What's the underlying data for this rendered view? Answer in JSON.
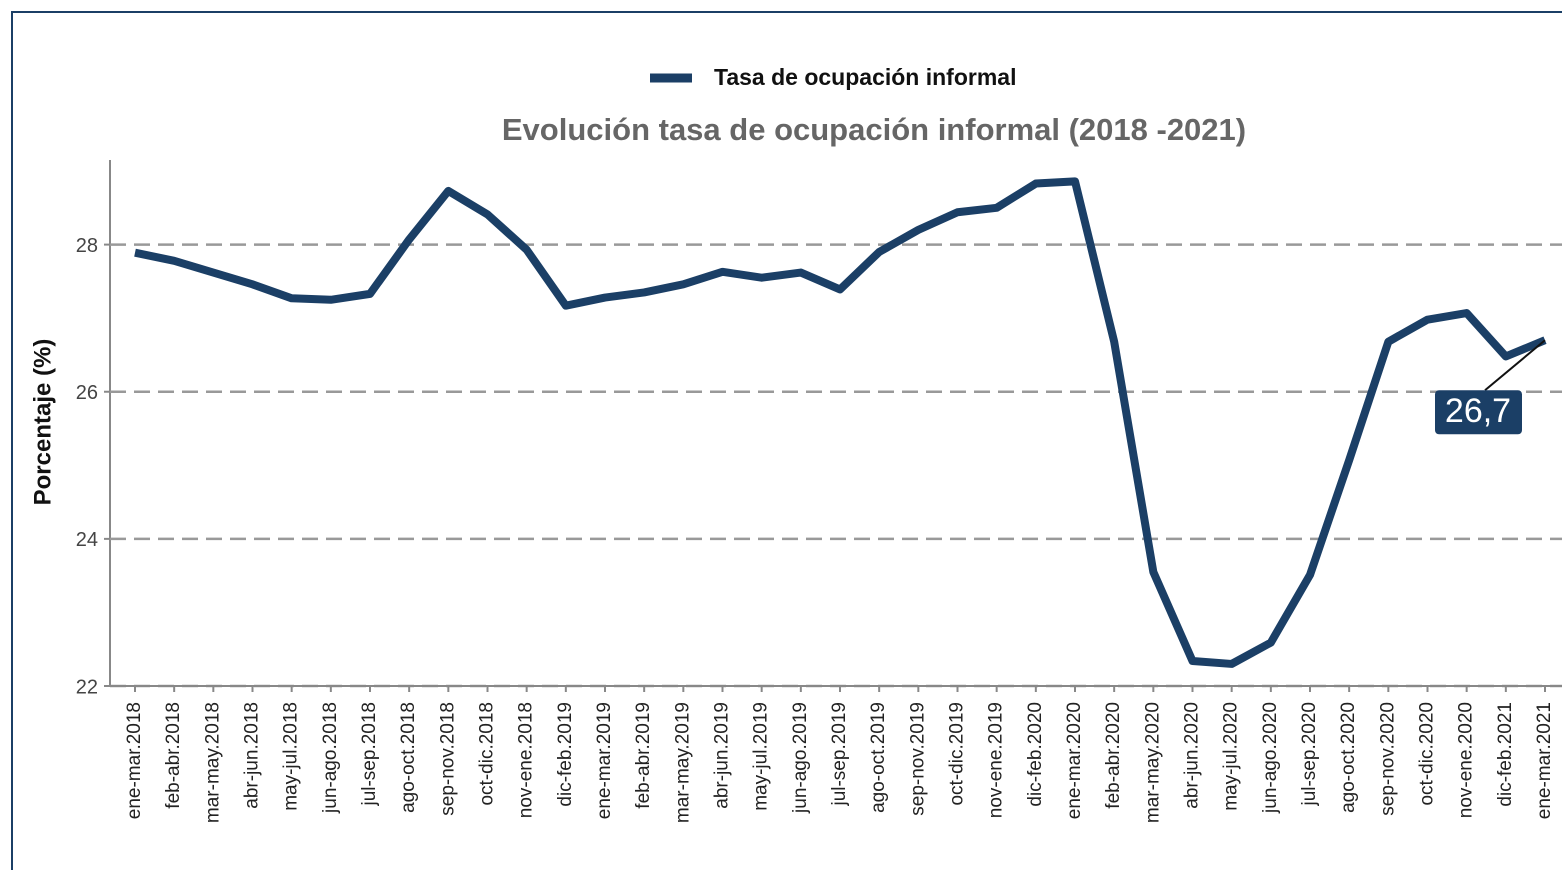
{
  "chart_data": {
    "type": "line",
    "title": "Evolución tasa de ocupación informal (2018 -2021)",
    "y_label": "Porcentaje (%)",
    "categories": [
      "ene-mar.2018",
      "feb-abr.2018",
      "mar-may.2018",
      "abr-jun.2018",
      "may-jul.2018",
      "jun-ago.2018",
      "jul-sep.2018",
      "ago-oct.2018",
      "sep-nov.2018",
      "oct-dic.2018",
      "nov-ene.2018",
      "dic-feb.2019",
      "ene-mar.2019",
      "feb-abr.2019",
      "mar-may.2019",
      "abr-jun.2019",
      "may-jul.2019",
      "jun-ago.2019",
      "jul-sep.2019",
      "ago-oct.2019",
      "sep-nov.2019",
      "oct-dic.2019",
      "nov-ene.2019",
      "dic-feb.2020",
      "ene-mar.2020",
      "feb-abr.2020",
      "mar-may.2020",
      "abr-jun.2020",
      "may-jul.2020",
      "jun-ago.2020",
      "jul-sep.2020",
      "ago-oct.2020",
      "sep-nov.2020",
      "oct-dic.2020",
      "nov-ene.2020",
      "dic-feb.2021",
      "ene-mar.2021"
    ],
    "series": [
      {
        "name": "Tasa de ocupación informal",
        "color": "#1b3f66",
        "values": [
          27.89,
          27.78,
          27.62,
          27.46,
          27.27,
          27.25,
          27.33,
          28.07,
          28.73,
          28.41,
          27.93,
          27.17,
          27.28,
          27.35,
          27.46,
          27.63,
          27.55,
          27.62,
          27.39,
          27.9,
          28.2,
          28.44,
          28.5,
          28.83,
          28.86,
          26.68,
          23.55,
          22.34,
          22.3,
          22.59,
          23.51,
          25.07,
          26.68,
          26.98,
          27.07,
          26.48,
          26.7
        ],
        "value_labels": [
          null,
          null,
          null,
          null,
          null,
          null,
          null,
          null,
          null,
          null,
          null,
          null,
          null,
          null,
          null,
          null,
          null,
          null,
          null,
          null,
          null,
          null,
          null,
          null,
          null,
          null,
          null,
          null,
          null,
          null,
          null,
          null,
          null,
          null,
          null,
          null,
          "26,7"
        ]
      }
    ],
    "ylim": [
      22,
      29.15
    ],
    "yticks": [
      22,
      24,
      26,
      28
    ],
    "grid": true,
    "legend": "top"
  }
}
